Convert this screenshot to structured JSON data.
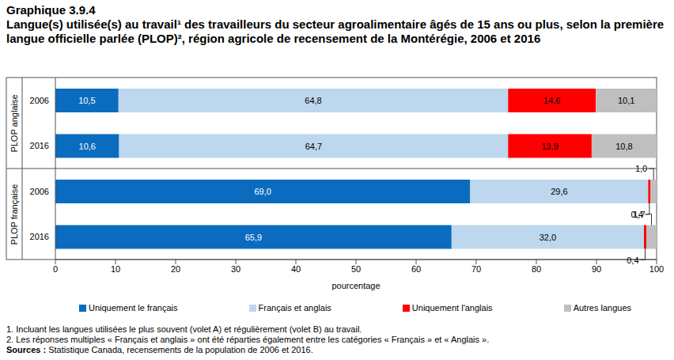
{
  "chart_data": {
    "type": "bar",
    "orientation": "horizontal",
    "stacked": true,
    "data_labels": true,
    "grid": false,
    "title": "Graphique 3.9.4",
    "subtitle": "Langue(s) utilisée(s) au travail¹ des travailleurs du secteur agroalimentaire âgés de 15 ans ou plus, selon la première langue officielle parlée (PLOP)², région agricole de recensement de la Montérégie, 2006 et 2016",
    "xlabel": "pourcentage",
    "categories": [
      "2006",
      "2016",
      "2006",
      "2016"
    ],
    "groups": [
      "PLOP anglaise",
      "PLOP anglaise",
      "PLOP française",
      "PLOP française"
    ],
    "xlim": [
      0,
      100
    ],
    "xticks": [
      0,
      10,
      20,
      30,
      40,
      50,
      60,
      70,
      80,
      90,
      100
    ],
    "series": [
      {
        "name": "Uniquement le français",
        "color": "#0b6cbf",
        "values": [
          10.5,
          10.6,
          69.0,
          65.9
        ],
        "value_labels": [
          "10,5",
          "10,6",
          "69,0",
          "65,9"
        ]
      },
      {
        "name": "Français et anglais",
        "color": "#bdd7ee",
        "values": [
          64.8,
          64.7,
          29.6,
          32.0
        ],
        "value_labels": [
          "64,8",
          "64,7",
          "29,6",
          "32,0"
        ]
      },
      {
        "name": "Uniquement l'anglais",
        "color": "#ff0000",
        "values": [
          14.6,
          13.9,
          0.4,
          0.4
        ],
        "value_labels": [
          "14,6",
          "13,9",
          "0,4",
          "0,4"
        ]
      },
      {
        "name": "Autres langues",
        "color": "#bfbfbf",
        "values": [
          10.1,
          10.8,
          1.0,
          1.7
        ],
        "value_labels": [
          "10,1",
          "10,8",
          "1,0",
          "1,7"
        ]
      }
    ],
    "notes": [
      "1. Incluant les langues utilisées le plus souvent (volet A) et régulièrement (volet B) au travail.",
      "2. Les réponses multiples « Français et anglais » ont été réparties également entre les catégories « Français » et « Anglais »."
    ],
    "source_label": "Sources :",
    "source": "Statistique Canada, recensements de la population de 2006 et 2016."
  }
}
